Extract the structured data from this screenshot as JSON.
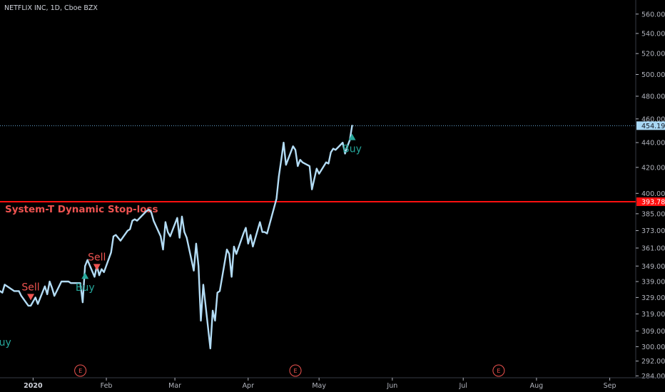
{
  "header": {
    "title": "NETFLIX INC, 1D, Cboe BZX"
  },
  "colors": {
    "background": "#000000",
    "price_line": "#b3dcf5",
    "stop_line": "#ff1010",
    "sell": "#ef5350",
    "buy": "#26a69a",
    "axis_text": "#b2b5be",
    "last_price_line": "#6aa9d8"
  },
  "chart_data": {
    "type": "line",
    "title": "NETFLIX INC, 1D, Cboe BZX",
    "y_scale": "log",
    "ylim": [
      283,
      575
    ],
    "y_ticks": [
      "560.00",
      "540.00",
      "520.00",
      "500.00",
      "480.00",
      "460.00",
      "440.00",
      "420.00",
      "400.00",
      "385.00",
      "373.00",
      "361.00",
      "349.00",
      "339.00",
      "329.00",
      "319.00",
      "309.00",
      "300.00",
      "292.00",
      "284.00"
    ],
    "x_ticks": [
      {
        "label": "2020",
        "date": "2020-01-01",
        "bold": true
      },
      {
        "label": "Feb",
        "date": "2020-02-01"
      },
      {
        "label": "Mar",
        "date": "2020-03-01"
      },
      {
        "label": "Apr",
        "date": "2020-04-01"
      },
      {
        "label": "May",
        "date": "2020-05-01"
      },
      {
        "label": "Jun",
        "date": "2020-06-01"
      },
      {
        "label": "Jul",
        "date": "2020-07-01"
      },
      {
        "label": "Aug",
        "date": "2020-08-01"
      },
      {
        "label": "Sep",
        "date": "2020-09-01"
      }
    ],
    "xlim": [
      "2019-12-18",
      "2020-09-12"
    ],
    "series": [
      {
        "values": [
          [
            "2019-12-18",
            333
          ],
          [
            "2019-12-19",
            332
          ],
          [
            "2019-12-20",
            337
          ],
          [
            "2019-12-23",
            334
          ],
          [
            "2019-12-24",
            333
          ],
          [
            "2019-12-26",
            333
          ],
          [
            "2019-12-27",
            330
          ],
          [
            "2019-12-30",
            324
          ],
          [
            "2019-12-31",
            324
          ],
          [
            "2020-01-02",
            329
          ],
          [
            "2020-01-03",
            325
          ],
          [
            "2020-01-06",
            336
          ],
          [
            "2020-01-07",
            331
          ],
          [
            "2020-01-08",
            339
          ],
          [
            "2020-01-09",
            335
          ],
          [
            "2020-01-10",
            330
          ],
          [
            "2020-01-13",
            339
          ],
          [
            "2020-01-14",
            339
          ],
          [
            "2020-01-15",
            339
          ],
          [
            "2020-01-16",
            339
          ],
          [
            "2020-01-17",
            338
          ],
          [
            "2020-01-21",
            338
          ],
          [
            "2020-01-22",
            326
          ],
          [
            "2020-01-23",
            349
          ],
          [
            "2020-01-24",
            353
          ],
          [
            "2020-01-27",
            342
          ],
          [
            "2020-01-28",
            349
          ],
          [
            "2020-01-29",
            343
          ],
          [
            "2020-01-30",
            347
          ],
          [
            "2020-01-31",
            345
          ],
          [
            "2020-02-03",
            358
          ],
          [
            "2020-02-04",
            369
          ],
          [
            "2020-02-05",
            370
          ],
          [
            "2020-02-06",
            368
          ],
          [
            "2020-02-07",
            366
          ],
          [
            "2020-02-10",
            373
          ],
          [
            "2020-02-11",
            374
          ],
          [
            "2020-02-12",
            380
          ],
          [
            "2020-02-13",
            381
          ],
          [
            "2020-02-14",
            380
          ],
          [
            "2020-02-18",
            387
          ],
          [
            "2020-02-19",
            388
          ],
          [
            "2020-02-20",
            386
          ],
          [
            "2020-02-21",
            380
          ],
          [
            "2020-02-24",
            369
          ],
          [
            "2020-02-25",
            360
          ],
          [
            "2020-02-26",
            379
          ],
          [
            "2020-02-27",
            372
          ],
          [
            "2020-02-28",
            369
          ],
          [
            "2020-03-02",
            382
          ],
          [
            "2020-03-03",
            368
          ],
          [
            "2020-03-04",
            383
          ],
          [
            "2020-03-05",
            372
          ],
          [
            "2020-03-06",
            368
          ],
          [
            "2020-03-09",
            346
          ],
          [
            "2020-03-10",
            364
          ],
          [
            "2020-03-11",
            349
          ],
          [
            "2020-03-12",
            315
          ],
          [
            "2020-03-13",
            337
          ],
          [
            "2020-03-16",
            299
          ],
          [
            "2020-03-17",
            321
          ],
          [
            "2020-03-18",
            315
          ],
          [
            "2020-03-19",
            332
          ],
          [
            "2020-03-20",
            333
          ],
          [
            "2020-03-23",
            360
          ],
          [
            "2020-03-24",
            357
          ],
          [
            "2020-03-25",
            342
          ],
          [
            "2020-03-26",
            362
          ],
          [
            "2020-03-27",
            357
          ],
          [
            "2020-03-30",
            371
          ],
          [
            "2020-03-31",
            375
          ],
          [
            "2020-04-01",
            364
          ],
          [
            "2020-04-02",
            370
          ],
          [
            "2020-04-03",
            362
          ],
          [
            "2020-04-06",
            379
          ],
          [
            "2020-04-07",
            372
          ],
          [
            "2020-04-08",
            372
          ],
          [
            "2020-04-09",
            371
          ],
          [
            "2020-04-13",
            396
          ],
          [
            "2020-04-14",
            413
          ],
          [
            "2020-04-15",
            426
          ],
          [
            "2020-04-16",
            440
          ],
          [
            "2020-04-17",
            422
          ],
          [
            "2020-04-20",
            437
          ],
          [
            "2020-04-21",
            434
          ],
          [
            "2020-04-22",
            421
          ],
          [
            "2020-04-23",
            426
          ],
          [
            "2020-04-24",
            424
          ],
          [
            "2020-04-27",
            421
          ],
          [
            "2020-04-28",
            403
          ],
          [
            "2020-04-29",
            411
          ],
          [
            "2020-04-30",
            419
          ],
          [
            "2020-05-01",
            415
          ],
          [
            "2020-05-04",
            424
          ],
          [
            "2020-05-05",
            423
          ],
          [
            "2020-05-06",
            432
          ],
          [
            "2020-05-07",
            435
          ],
          [
            "2020-05-08",
            434
          ],
          [
            "2020-05-11",
            440
          ],
          [
            "2020-05-12",
            431
          ],
          [
            "2020-05-13",
            437
          ],
          [
            "2020-05-14",
            442
          ],
          [
            "2020-05-15",
            454.19
          ]
        ]
      }
    ],
    "stop_loss": {
      "label": "System-T Dynamic Stop-loss",
      "value": 393.78,
      "value_label": "393.78"
    },
    "last_price": {
      "value": 454.19,
      "value_label": "454.19"
    },
    "signals": [
      {
        "type": "sell",
        "label": "Sell",
        "date": "2019-12-31",
        "price": 329
      },
      {
        "type": "buy",
        "label": "Buy",
        "date": "2020-01-23",
        "price": 343
      },
      {
        "type": "sell",
        "label": "Sell",
        "date": "2020-01-28",
        "price": 348
      },
      {
        "type": "buy",
        "label": "Buy",
        "date": "2020-05-15",
        "price": 445
      }
    ],
    "earnings_markers": [
      {
        "label": "E",
        "date": "2020-01-21"
      },
      {
        "label": "E",
        "date": "2020-04-21"
      },
      {
        "label": "E",
        "date": "2020-07-16"
      }
    ],
    "grid": false
  }
}
